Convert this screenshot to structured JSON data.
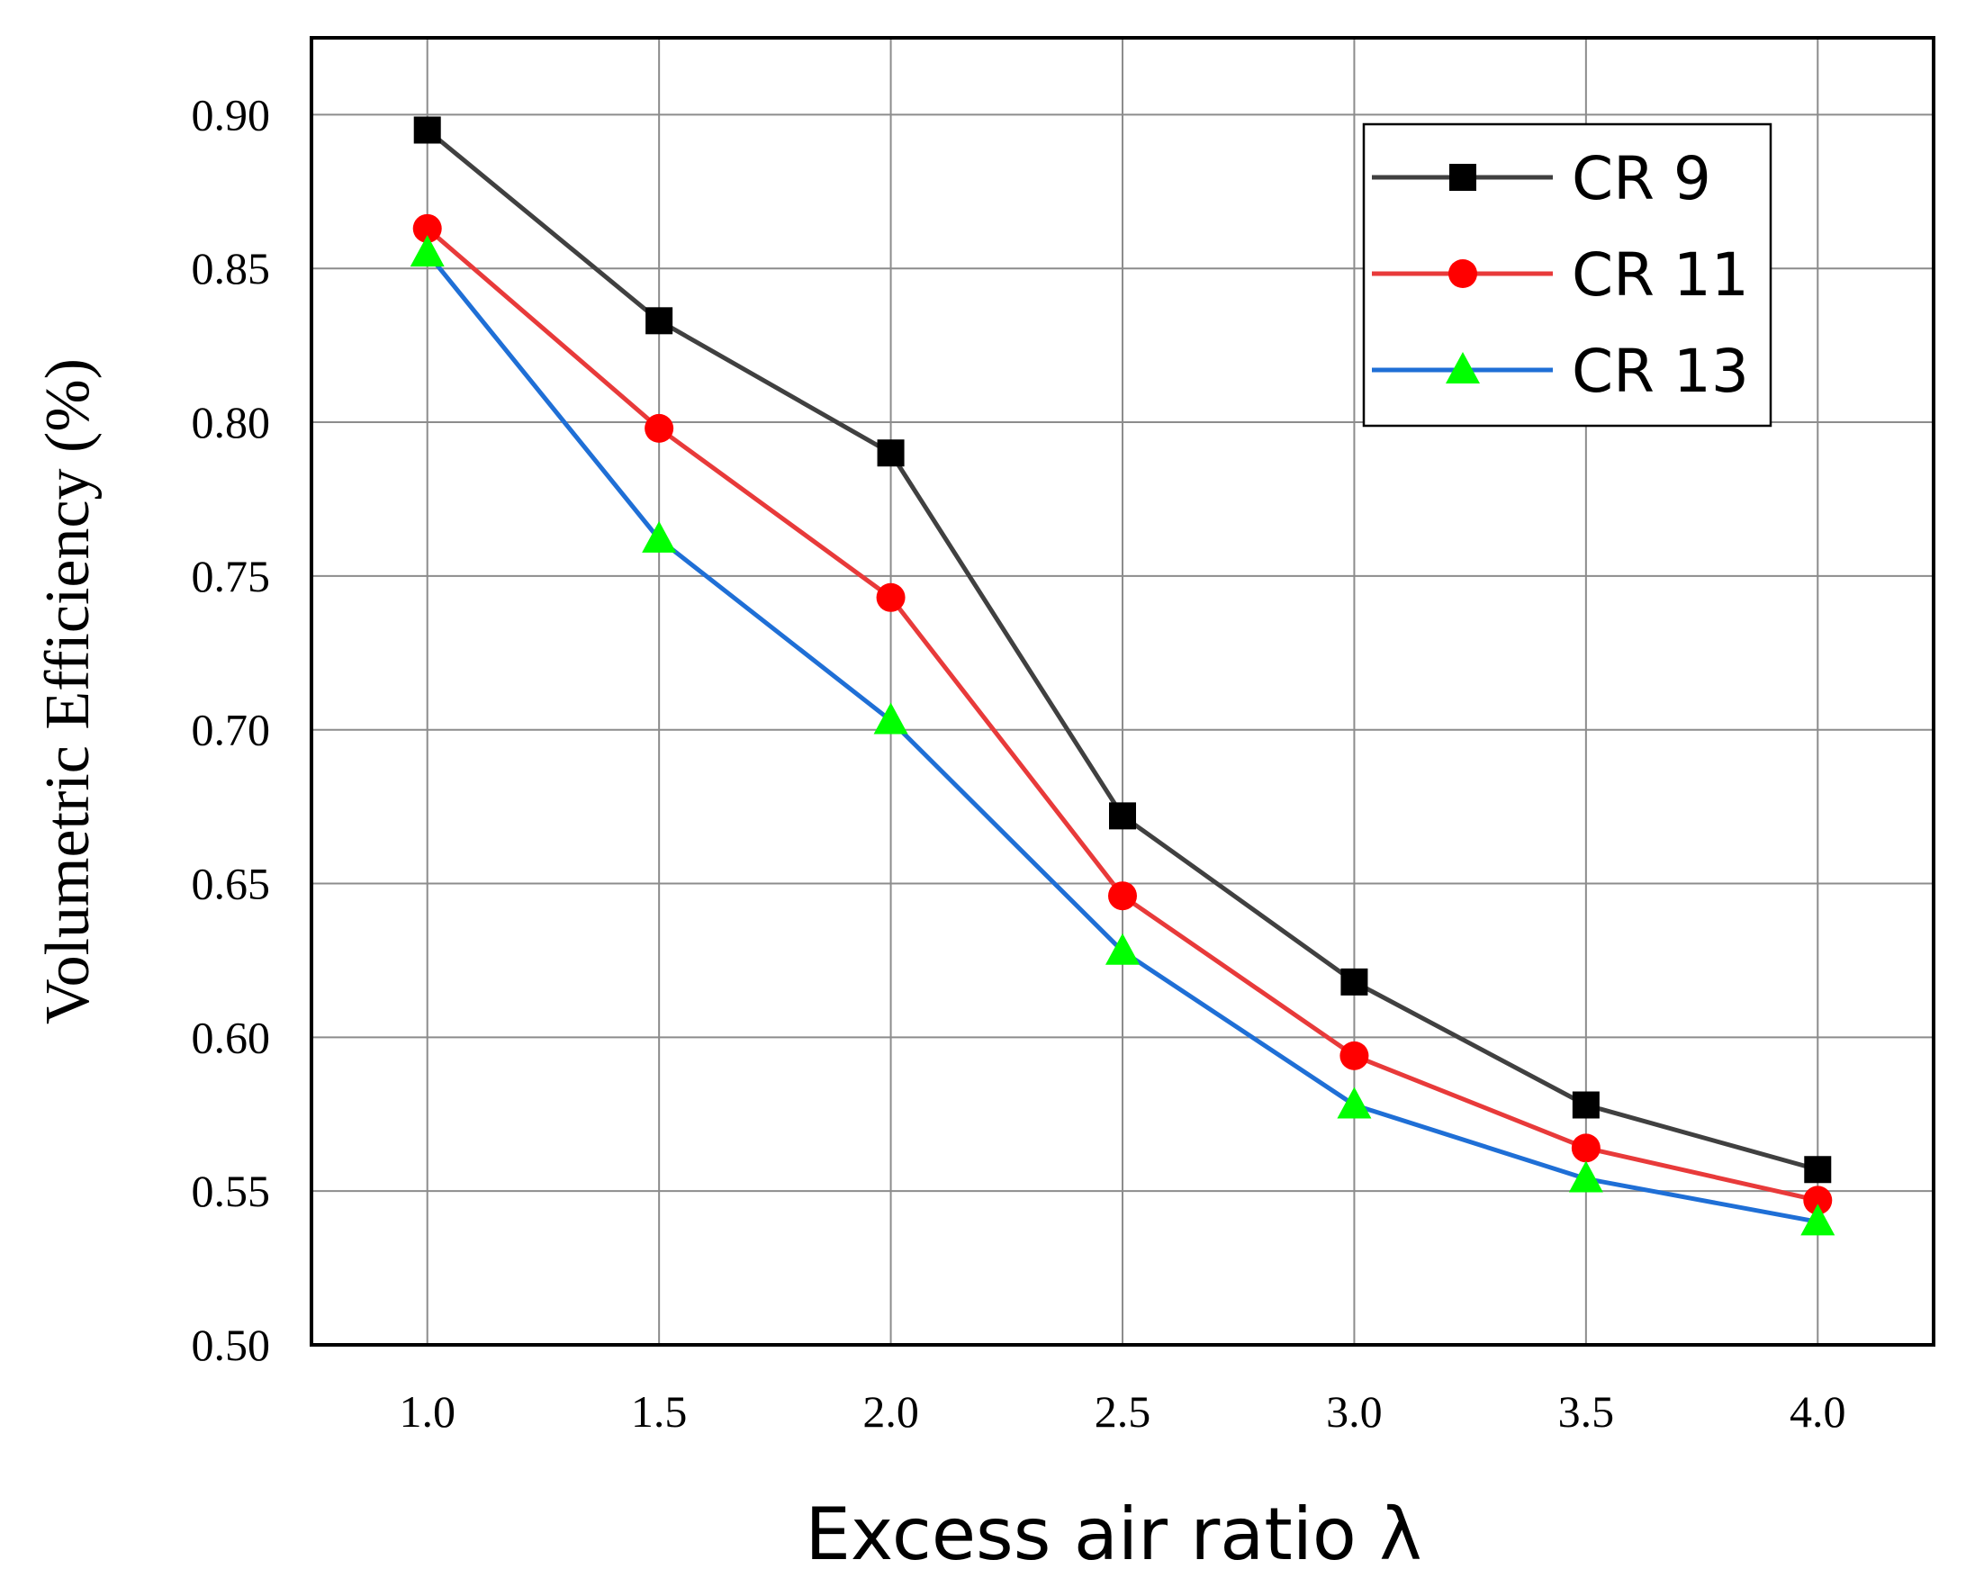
{
  "chart_data": {
    "type": "line",
    "xlabel": "Excess air ratio λ",
    "ylabel": "Volumetric Efficiency (%)",
    "x": [
      1.0,
      1.5,
      2.0,
      2.5,
      3.0,
      3.5,
      4.0
    ],
    "x_tick_labels": [
      "1.0",
      "1.5",
      "2.0",
      "2.5",
      "3.0",
      "3.5",
      "4.0"
    ],
    "y_tick_labels": [
      "0.50",
      "0.55",
      "0.60",
      "0.65",
      "0.70",
      "0.75",
      "0.80",
      "0.85",
      "0.90"
    ],
    "y_ticks": [
      0.5,
      0.55,
      0.6,
      0.65,
      0.7,
      0.75,
      0.8,
      0.85,
      0.9
    ],
    "xlim": [
      0.75,
      4.25
    ],
    "ylim": [
      0.5,
      0.925
    ],
    "grid": true,
    "legend_position": "top-right",
    "series": [
      {
        "name": "CR 9",
        "color": "#404040",
        "marker_color": "#000000",
        "marker": "square",
        "values": [
          0.895,
          0.833,
          0.79,
          0.672,
          0.618,
          0.578,
          0.557
        ]
      },
      {
        "name": "CR 11",
        "color": "#e83a3a",
        "marker_color": "#ff0000",
        "marker": "circle",
        "values": [
          0.863,
          0.798,
          0.743,
          0.646,
          0.594,
          0.564,
          0.547
        ]
      },
      {
        "name": "CR 13",
        "color": "#1f6fd6",
        "marker_color": "#00ff00",
        "marker": "triangle",
        "values": [
          0.855,
          0.762,
          0.703,
          0.628,
          0.578,
          0.554,
          0.54
        ]
      }
    ]
  }
}
